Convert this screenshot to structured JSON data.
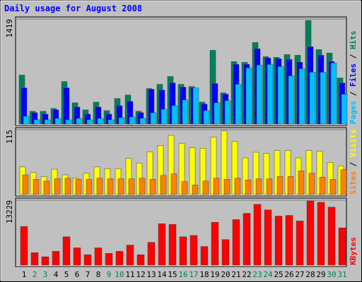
{
  "title": "Daily usage for August 2008",
  "legend_separator": " / ",
  "chart_data": [
    {
      "type": "bar",
      "ylim": [
        0,
        1419
      ],
      "yticks": [
        1419
      ],
      "series": [
        {
          "name": "Hits",
          "color": "#00805c",
          "values": [
            662,
            173,
            173,
            211,
            575,
            288,
            192,
            297,
            182,
            345,
            393,
            173,
            480,
            537,
            643,
            537,
            508,
            297,
            997,
            422,
            844,
            834,
            1103,
            911,
            901,
            940,
            930,
            1400,
            1007,
            959,
            623
          ]
        },
        {
          "name": "Files",
          "color": "#0000ff",
          "values": [
            489,
            153,
            134,
            192,
            489,
            230,
            134,
            230,
            134,
            249,
            307,
            153,
            470,
            460,
            556,
            499,
            489,
            269,
            547,
            403,
            806,
            806,
            1017,
            892,
            882,
            873,
            834,
            1045,
            930,
            844,
            556
          ]
        },
        {
          "name": "Pages",
          "color": "#00c0ff",
          "values": [
            105,
            58,
            58,
            77,
            58,
            77,
            58,
            77,
            58,
            86,
            96,
            77,
            153,
            201,
            249,
            326,
            489,
            182,
            288,
            316,
            537,
            758,
            796,
            806,
            777,
            652,
            748,
            700,
            700,
            825,
            403
          ]
        }
      ]
    },
    {
      "type": "bar",
      "ylim": [
        0,
        115
      ],
      "yticks": [
        115
      ],
      "series": [
        {
          "name": "Visits",
          "color": "#ffff00",
          "values": [
            49,
            39,
            32,
            45,
            35,
            29,
            38,
            49,
            46,
            46,
            64,
            56,
            76,
            87,
            105,
            91,
            83,
            82,
            102,
            113,
            94,
            65,
            75,
            73,
            78,
            78,
            65,
            78,
            77,
            57,
            51
          ]
        },
        {
          "name": "Sites",
          "color": "#ff8000",
          "values": [
            35,
            27,
            24,
            28,
            29,
            27,
            27,
            29,
            28,
            28,
            28,
            29,
            27,
            34,
            37,
            23,
            17,
            24,
            29,
            27,
            29,
            26,
            28,
            28,
            32,
            32,
            42,
            38,
            31,
            27,
            44
          ]
        }
      ]
    },
    {
      "type": "bar",
      "ylim": [
        0,
        13229
      ],
      "yticks": [
        13229
      ],
      "categories": [
        "1",
        "2",
        "3",
        "4",
        "5",
        "6",
        "7",
        "8",
        "9",
        "10",
        "11",
        "12",
        "13",
        "14",
        "15",
        "16",
        "17",
        "18",
        "19",
        "20",
        "21",
        "22",
        "23",
        "24",
        "25",
        "26",
        "27",
        "28",
        "29",
        "30",
        "31"
      ],
      "category_colors": [
        "#000000",
        "#00805c",
        "#00805c",
        "#000000",
        "#000000",
        "#000000",
        "#000000",
        "#000000",
        "#00805c",
        "#00805c",
        "#000000",
        "#000000",
        "#000000",
        "#000000",
        "#000000",
        "#00805c",
        "#00805c",
        "#000000",
        "#000000",
        "#000000",
        "#000000",
        "#000000",
        "#00805c",
        "#00805c",
        "#000000",
        "#000000",
        "#000000",
        "#000000",
        "#000000",
        "#00805c",
        "#00805c"
      ],
      "series": [
        {
          "name": "KBytes",
          "color": "#ff0000",
          "values": [
            7879,
            2533,
            1688,
            2814,
            5769,
            3518,
            2111,
            3518,
            2392,
            2814,
            4080,
            2111,
            4643,
            8442,
            8301,
            5769,
            6050,
            3799,
            8723,
            5206,
            9286,
            10553,
            12382,
            11256,
            9990,
            10130,
            9005,
            13085,
            12804,
            11819,
            7598
          ]
        }
      ]
    }
  ]
}
